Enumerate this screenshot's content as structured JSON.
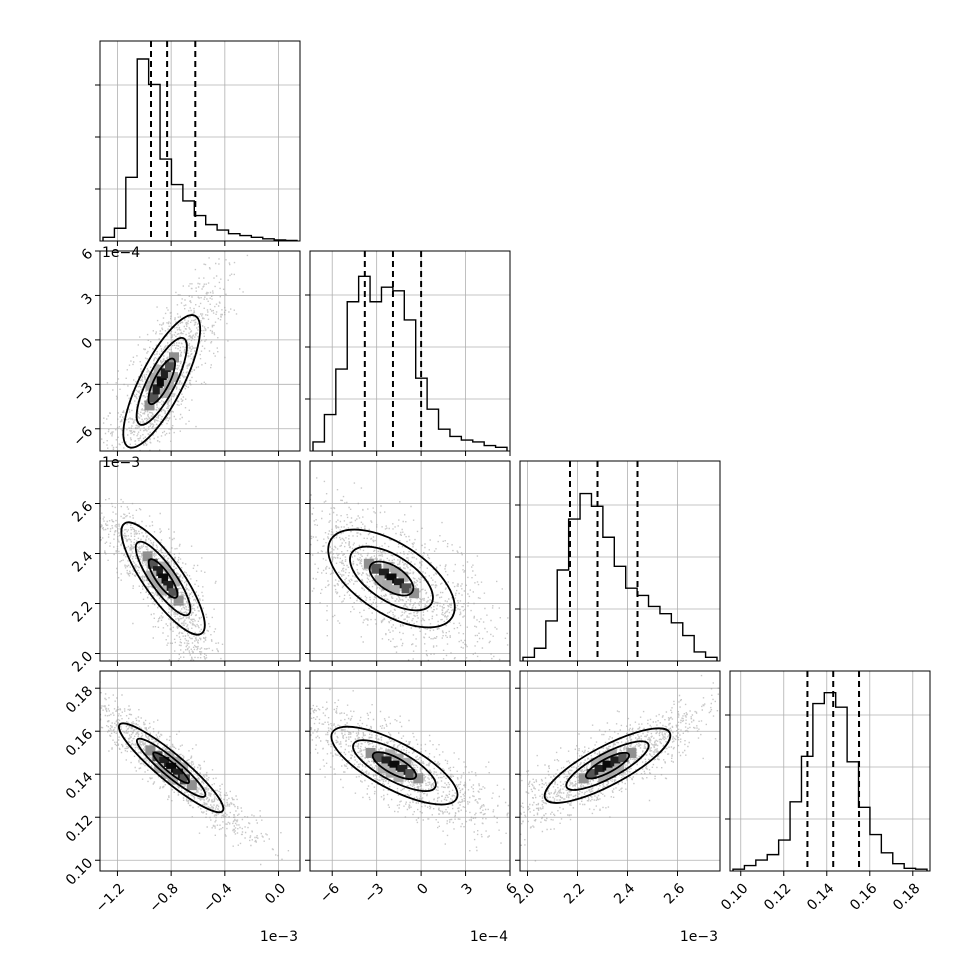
{
  "chart_data": {
    "type": "corner",
    "style": {
      "grid": true,
      "quantile_line_style": "dashed",
      "density": "grayscale 2D histogram with contours",
      "scatter_color": "#9a9a9a"
    },
    "parameters": [
      {
        "range": [
          -0.00133,
          0.00016
        ],
        "ticks": [
          -1.2,
          -0.8,
          -0.4,
          0.0
        ],
        "tick_labels": [
          "−1.2",
          "−0.8",
          "−0.4",
          "0.0"
        ],
        "offset": "1e−3",
        "quantiles": [
          -0.00095,
          -0.00083,
          -0.00062
        ]
      },
      {
        "range": [
          -0.00075,
          0.0006
        ],
        "ticks": [
          -6,
          -3,
          0,
          3,
          6
        ],
        "tick_labels": [
          "−6",
          "−3",
          "0",
          "3",
          "6"
        ],
        "offset": "1e−4",
        "quantiles": [
          -0.00038,
          -0.00019,
          0.0
        ]
      },
      {
        "range": [
          0.00197,
          0.00277
        ],
        "ticks": [
          2.0,
          2.2,
          2.4,
          2.6
        ],
        "tick_labels": [
          "2.0",
          "2.2",
          "2.4",
          "2.6"
        ],
        "offset": "1e−3",
        "quantiles": [
          0.00217,
          0.00228,
          0.00244
        ]
      },
      {
        "range": [
          0.095,
          0.188
        ],
        "ticks": [
          0.1,
          0.12,
          0.14,
          0.16,
          0.18
        ],
        "tick_labels": [
          "0.10",
          "0.12",
          "0.14",
          "0.16",
          "0.18"
        ],
        "offset": "",
        "quantiles": [
          0.131,
          0.143,
          0.155
        ]
      }
    ],
    "histograms": [
      {
        "counts": [
          0.02,
          0.07,
          0.35,
          1.0,
          0.86,
          0.45,
          0.31,
          0.22,
          0.14,
          0.09,
          0.06,
          0.04,
          0.03,
          0.02,
          0.012,
          0.006,
          0.003
        ]
      },
      {
        "counts": [
          0.05,
          0.2,
          0.45,
          0.82,
          0.96,
          0.82,
          0.9,
          0.88,
          0.72,
          0.4,
          0.23,
          0.12,
          0.08,
          0.06,
          0.05,
          0.03,
          0.02
        ]
      },
      {
        "counts": [
          0.02,
          0.07,
          0.22,
          0.5,
          0.78,
          0.92,
          0.85,
          0.68,
          0.52,
          0.4,
          0.36,
          0.3,
          0.26,
          0.21,
          0.14,
          0.05,
          0.02
        ]
      },
      {
        "counts": [
          0.01,
          0.03,
          0.06,
          0.09,
          0.17,
          0.38,
          0.63,
          0.92,
          0.98,
          0.9,
          0.6,
          0.35,
          0.2,
          0.1,
          0.04,
          0.015,
          0.01
        ]
      }
    ],
    "pair_correlations": [
      {
        "row": 1,
        "col": 0,
        "direction": "positive"
      },
      {
        "row": 2,
        "col": 0,
        "direction": "negative"
      },
      {
        "row": 2,
        "col": 1,
        "direction": "negative"
      },
      {
        "row": 3,
        "col": 0,
        "direction": "negative"
      },
      {
        "row": 3,
        "col": 1,
        "direction": "negative"
      },
      {
        "row": 3,
        "col": 2,
        "direction": "positive"
      }
    ]
  }
}
